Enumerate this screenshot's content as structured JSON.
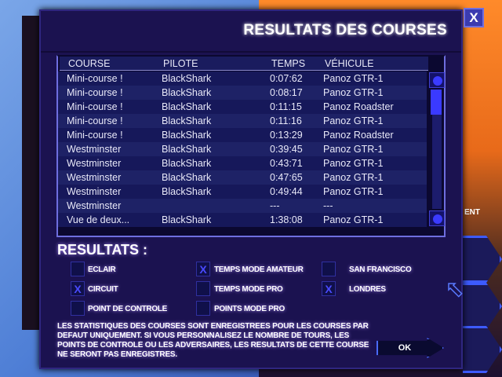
{
  "dialog": {
    "title": "RESULTATS DES COURSES",
    "close_label": "X"
  },
  "background": {
    "side_label": "ENT"
  },
  "table": {
    "headers": [
      "COURSE",
      "PILOTE",
      "TEMPS",
      "VÉHICULE"
    ],
    "rows": [
      [
        "Mini-course !",
        "BlackShark",
        "0:07:62",
        "Panoz GTR-1"
      ],
      [
        "Mini-course !",
        "BlackShark",
        "0:08:17",
        "Panoz GTR-1"
      ],
      [
        "Mini-course !",
        "BlackShark",
        "0:11:15",
        "Panoz Roadster"
      ],
      [
        "Mini-course !",
        "BlackShark",
        "0:11:16",
        "Panoz GTR-1"
      ],
      [
        "Mini-course !",
        "BlackShark",
        "0:13:29",
        "Panoz Roadster"
      ],
      [
        "Westminster",
        "BlackShark",
        "0:39:45",
        "Panoz GTR-1"
      ],
      [
        "Westminster",
        "BlackShark",
        "0:43:71",
        "Panoz GTR-1"
      ],
      [
        "Westminster",
        "BlackShark",
        "0:47:65",
        "Panoz GTR-1"
      ],
      [
        "Westminster",
        "BlackShark",
        "0:49:44",
        "Panoz GTR-1"
      ],
      [
        "Westminster",
        "",
        "---",
        "---"
      ],
      [
        "Vue de deux...",
        "BlackShark",
        "1:38:08",
        "Panoz GTR-1"
      ]
    ]
  },
  "results": {
    "title": "RESULTATS :",
    "check_mark": "X",
    "options": [
      {
        "label": "ECLAIR",
        "checked": false
      },
      {
        "label": "CIRCUIT",
        "checked": true
      },
      {
        "label": "POINT DE CONTROLE",
        "checked": false
      },
      {
        "label": "TEMPS MODE AMATEUR",
        "checked": true
      },
      {
        "label": "TEMPS MODE PRO",
        "checked": false
      },
      {
        "label": "POINTS MODE PRO",
        "checked": false
      },
      {
        "label": "SAN FRANCISCO",
        "checked": false
      },
      {
        "label": "LONDRES",
        "checked": true
      }
    ]
  },
  "note": "LES STATISTIQUES DES COURSES SONT ENREGISTREES POUR LES COURSES PAR DEFAUT UNIQUEMENT. SI VOUS PERSONNALISEZ LE NOMBRE DE TOURS, LES POINTS DE CONTROLE OU LES ADVERSAIRES, LES RESULTATS DE CETTE COURSE NE SERONT PAS ENREGISTRES.",
  "ok_label": "OK",
  "colors": {
    "dialog": "#1b1250",
    "accent": "#3b3bff"
  }
}
